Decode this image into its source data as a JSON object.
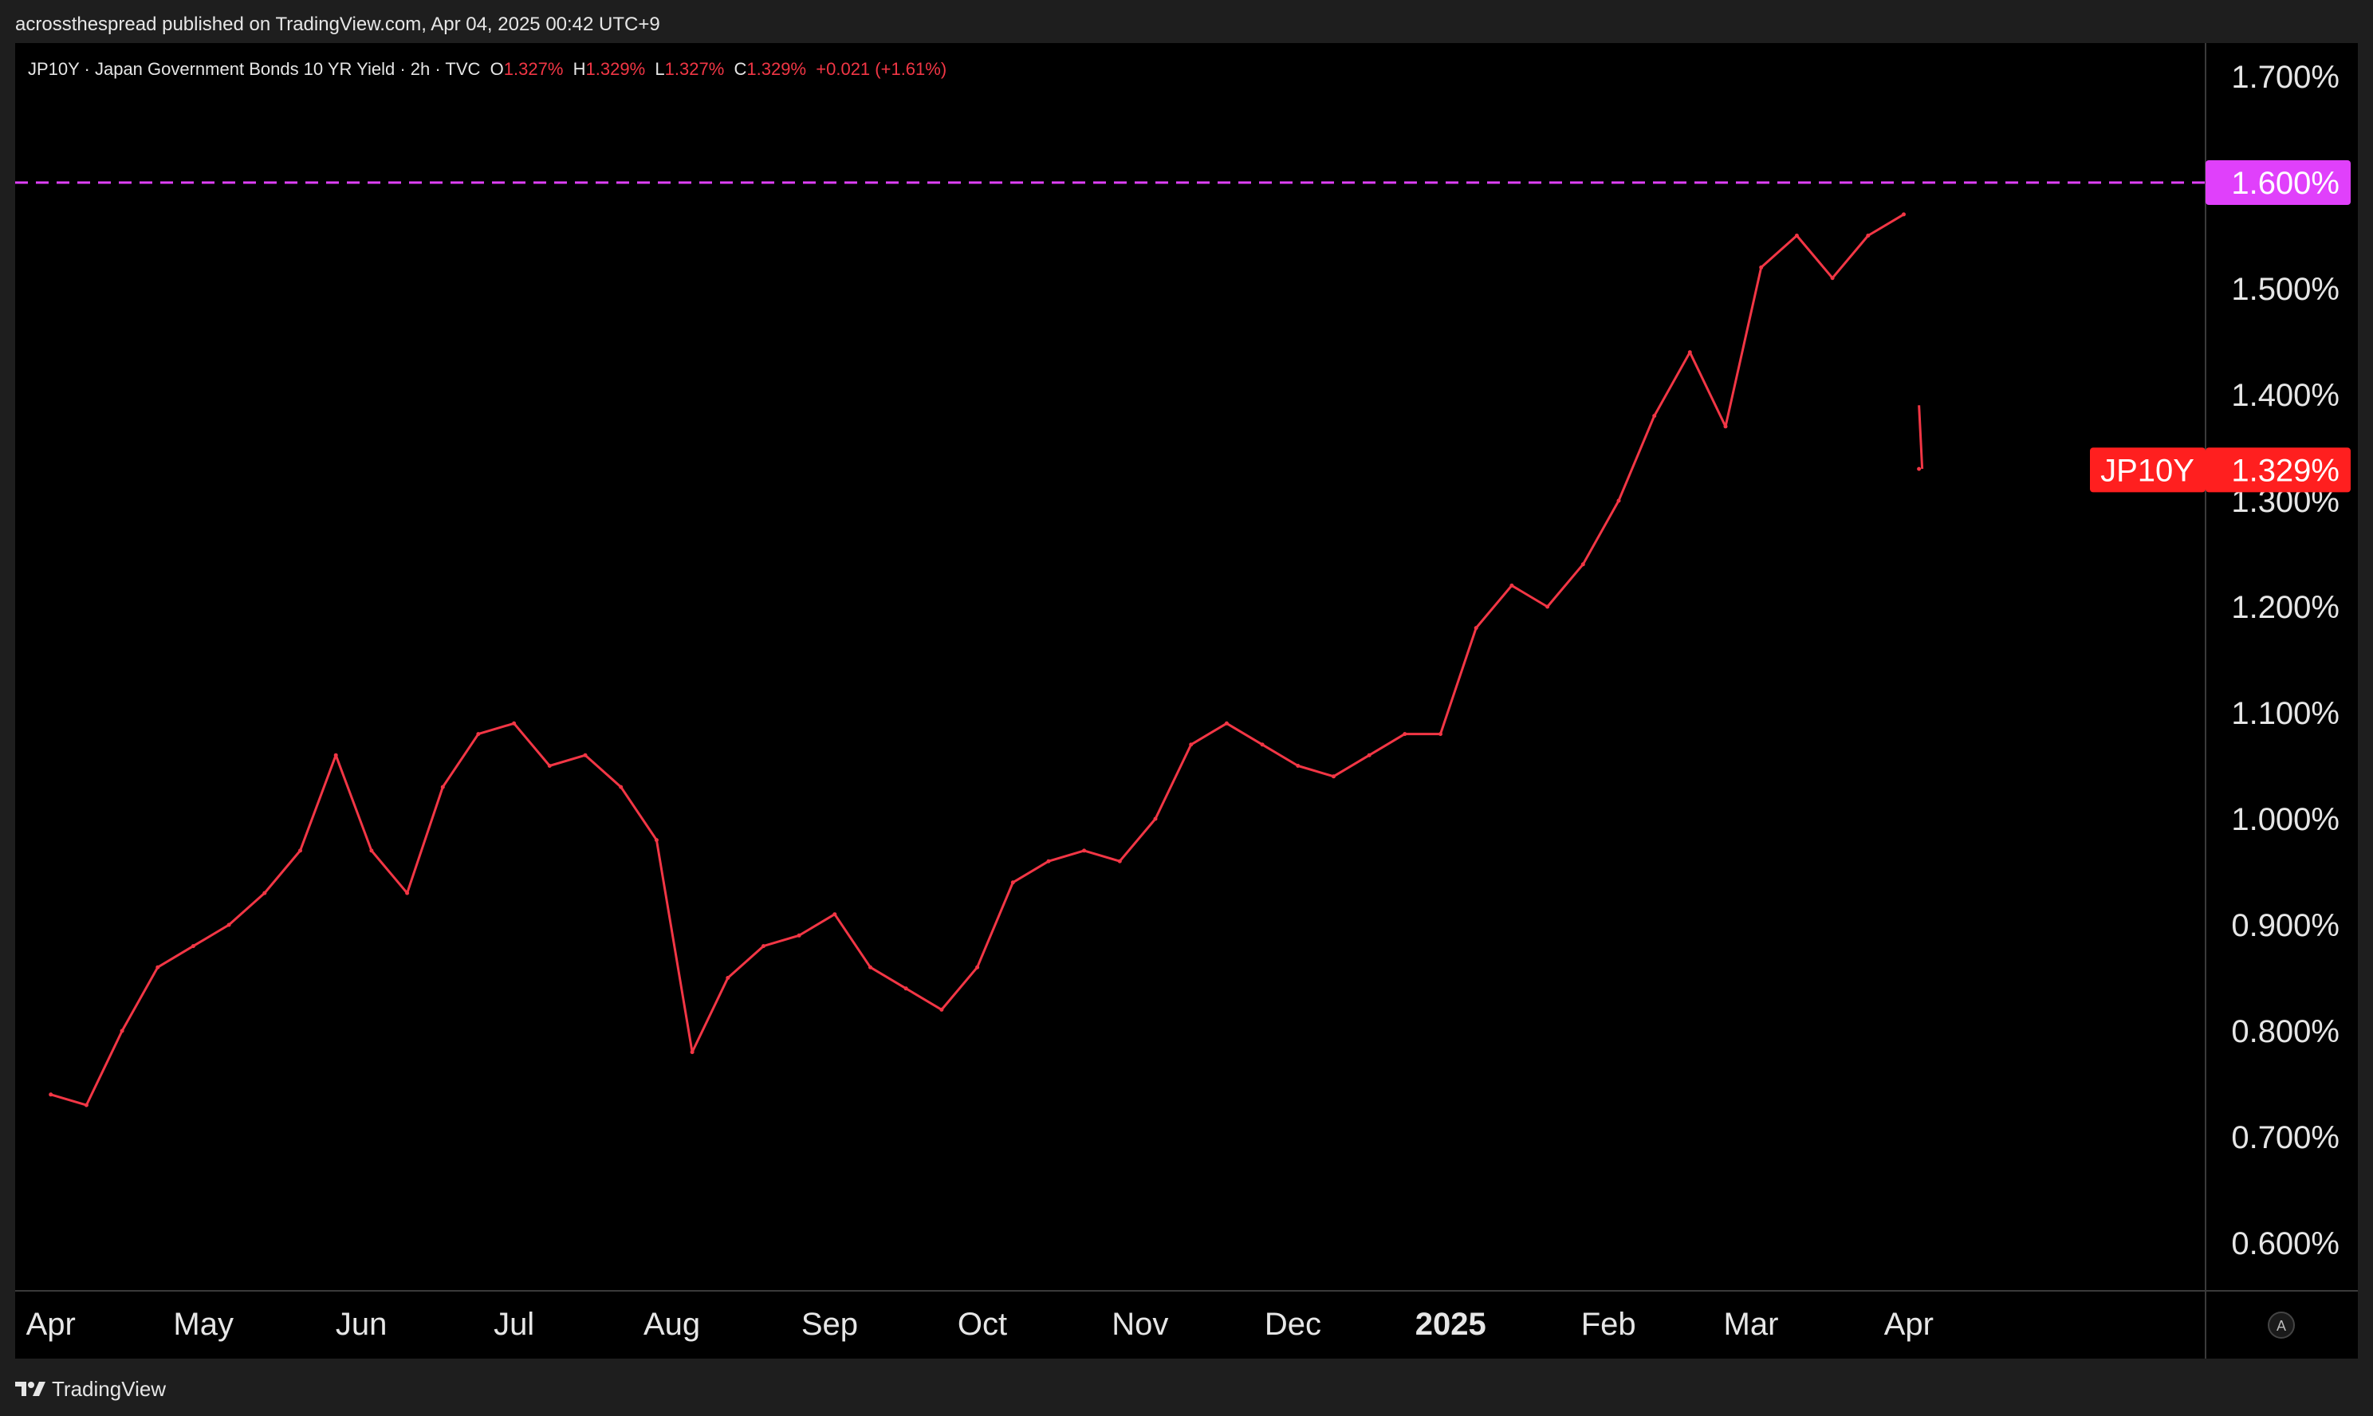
{
  "header": {
    "publish_text": "acrossthespread published on TradingView.com, Apr 04, 2025 00:42 UTC+9"
  },
  "legend": {
    "symbol_line": "JP10Y · Japan Government Bonds 10 YR Yield · 2h · TVC",
    "o_label": "O",
    "o_value": "1.327%",
    "h_label": "H",
    "h_value": "1.329%",
    "l_label": "L",
    "l_value": "1.327%",
    "c_label": "C",
    "c_value": "1.329%",
    "change": "+0.021 (+1.61%)"
  },
  "footer": {
    "brand": "TradingView"
  },
  "auto_scale_button": "A",
  "colors": {
    "series": "#f23645",
    "level_line": "#e040fb",
    "price_tag": "#ff1f1f",
    "background": "#000000"
  },
  "chart_data": {
    "type": "line",
    "title": "JP10Y · Japan Government Bonds 10 YR Yield · 2h · TVC",
    "xlabel": "",
    "ylabel": "",
    "x_ticks": [
      "Apr",
      "May",
      "Jun",
      "Jul",
      "Aug",
      "Sep",
      "Oct",
      "Nov",
      "Dec",
      "2025",
      "Feb",
      "Mar",
      "Apr"
    ],
    "y_ticks": [
      "1.700%",
      "1.600%",
      "1.500%",
      "1.400%",
      "1.300%",
      "1.200%",
      "1.100%",
      "1.000%",
      "0.900%",
      "0.800%",
      "0.700%",
      "0.600%"
    ],
    "ylim": [
      0.55,
      1.72
    ],
    "y_unit": "%",
    "horizontal_level": {
      "value": 1.6,
      "label": "1.600%"
    },
    "last_price": {
      "symbol": "JP10Y",
      "value": 1.329,
      "label": "1.329%"
    },
    "grid": false,
    "series": [
      {
        "name": "JP10Y",
        "x": [
          "2024-04-01",
          "2024-04-08",
          "2024-04-15",
          "2024-04-22",
          "2024-04-29",
          "2024-05-06",
          "2024-05-13",
          "2024-05-20",
          "2024-05-27",
          "2024-06-03",
          "2024-06-10",
          "2024-06-17",
          "2024-06-24",
          "2024-07-01",
          "2024-07-08",
          "2024-07-15",
          "2024-07-22",
          "2024-07-29",
          "2024-08-05",
          "2024-08-12",
          "2024-08-19",
          "2024-08-26",
          "2024-09-02",
          "2024-09-09",
          "2024-09-16",
          "2024-09-23",
          "2024-09-30",
          "2024-10-07",
          "2024-10-14",
          "2024-10-21",
          "2024-10-28",
          "2024-11-04",
          "2024-11-11",
          "2024-11-18",
          "2024-11-25",
          "2024-12-02",
          "2024-12-09",
          "2024-12-16",
          "2024-12-23",
          "2024-12-30",
          "2025-01-06",
          "2025-01-13",
          "2025-01-20",
          "2025-01-27",
          "2025-02-03",
          "2025-02-10",
          "2025-02-17",
          "2025-02-24",
          "2025-03-03",
          "2025-03-10",
          "2025-03-17",
          "2025-03-24",
          "2025-03-31",
          "2025-04-03"
        ],
        "values": [
          0.74,
          0.73,
          0.8,
          0.86,
          0.88,
          0.9,
          0.93,
          0.97,
          1.06,
          0.97,
          0.93,
          1.03,
          1.08,
          1.09,
          1.05,
          1.06,
          1.03,
          0.98,
          0.78,
          0.85,
          0.88,
          0.89,
          0.91,
          0.86,
          0.84,
          0.82,
          0.86,
          0.94,
          0.96,
          0.97,
          0.96,
          1.0,
          1.07,
          1.09,
          1.07,
          1.05,
          1.04,
          1.06,
          1.08,
          1.08,
          1.18,
          1.22,
          1.2,
          1.24,
          1.3,
          1.38,
          1.44,
          1.37,
          1.52,
          1.55,
          1.51,
          1.55,
          1.57,
          1.33
        ]
      }
    ]
  }
}
